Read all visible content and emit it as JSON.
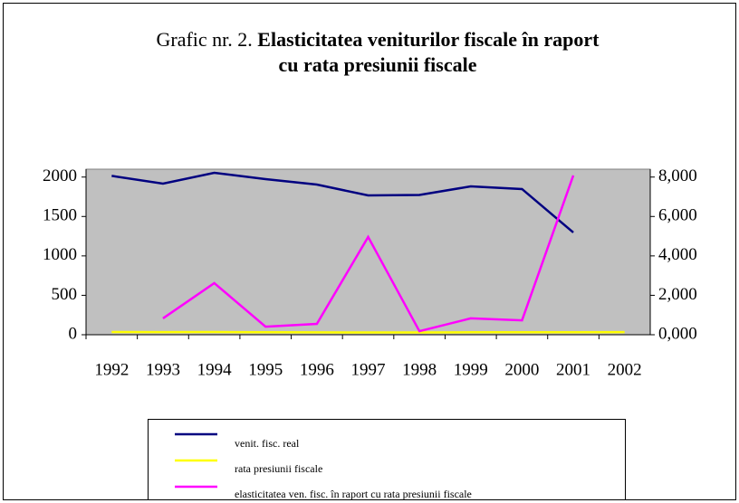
{
  "chart_data": {
    "type": "line",
    "title_lead": "Grafic nr. 2.",
    "title": [
      "Elasticitatea veniturilor fiscale în raport",
      "cu rata presiunii fiscale"
    ],
    "categories": [
      "1992",
      "1993",
      "1994",
      "1995",
      "1996",
      "1997",
      "1998",
      "1999",
      "2000",
      "2001",
      "2002"
    ],
    "series": [
      {
        "name": "venit. fisc. real",
        "color": "#000080",
        "values": [
          2015,
          1916,
          2054,
          1974,
          1905,
          1767,
          1773,
          1882,
          1848,
          1297,
          null
        ]
      },
      {
        "name": "rata presiunii fiscale",
        "color": "#ffff00",
        "values": [
          35,
          33,
          34,
          32,
          30,
          28,
          29,
          31,
          31,
          32,
          33
        ]
      },
      {
        "name": "elasticitatea ven. fisc. în raport cu rata presiunii fiscale",
        "color": "#ff00ff",
        "axis": "y2",
        "values": [
          null,
          0.83,
          2.62,
          0.41,
          0.55,
          4.96,
          0.18,
          0.83,
          0.73,
          8.08,
          null
        ]
      }
    ],
    "ylim": [
      0,
      2100
    ],
    "yticks": [
      0,
      500,
      1000,
      1500,
      2000
    ],
    "y2lim": [
      0,
      8.4
    ],
    "y2ticks": [
      {
        "value": 0,
        "label": "0,000"
      },
      {
        "value": 2,
        "label": "2,000"
      },
      {
        "value": 4,
        "label": "4,000"
      },
      {
        "value": 6,
        "label": "6,000"
      },
      {
        "value": 8,
        "label": "8,000"
      }
    ],
    "plot_background": "#c0c0c0",
    "legend": "bottom"
  }
}
